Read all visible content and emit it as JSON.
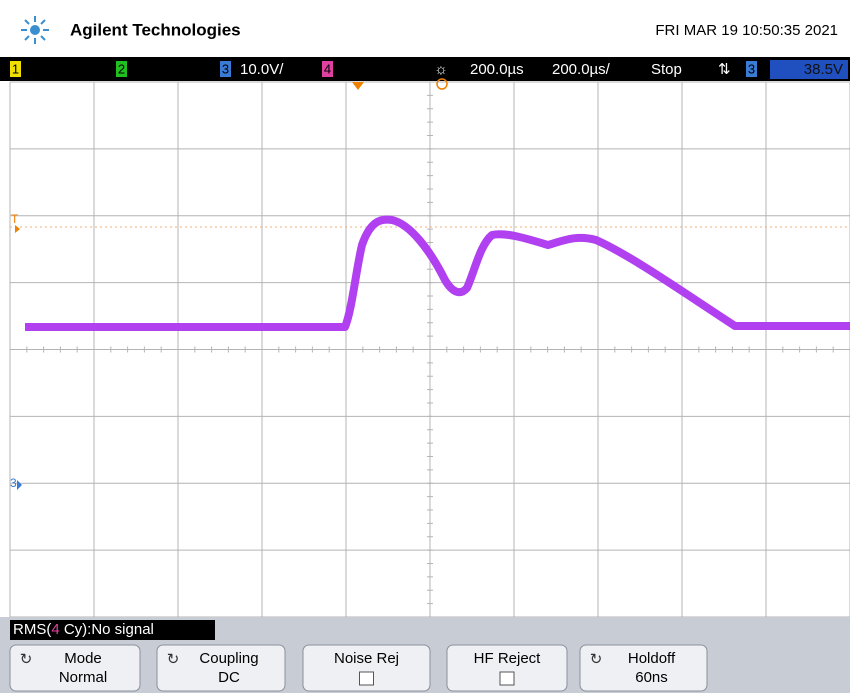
{
  "header": {
    "brand": "Agilent Technologies",
    "datetime": "FRI MAR 19 10:50:35 2021"
  },
  "status": {
    "ch1": "1",
    "ch2": "2",
    "ch3": "3",
    "ch3_scale": "10.0V/",
    "ch4": "4",
    "trigger_delay": "200.0µs",
    "time_scale": "200.0µs/",
    "run_state": "Stop",
    "trigger_slope": "⇅",
    "trigger_source": "3",
    "trigger_level": "38.5V"
  },
  "markers": {
    "trigger": "T",
    "channel": "3"
  },
  "measurement": {
    "prefix": "RMS(",
    "channel": "4",
    "suffix": " Cy):No signal"
  },
  "softkeys": [
    {
      "label": "Mode",
      "value": "Normal"
    },
    {
      "label": "Coupling",
      "value": "DC"
    },
    {
      "label": "Noise Rej"
    },
    {
      "label": "HF Reject"
    },
    {
      "label": "Holdoff",
      "value": "60ns"
    }
  ]
}
